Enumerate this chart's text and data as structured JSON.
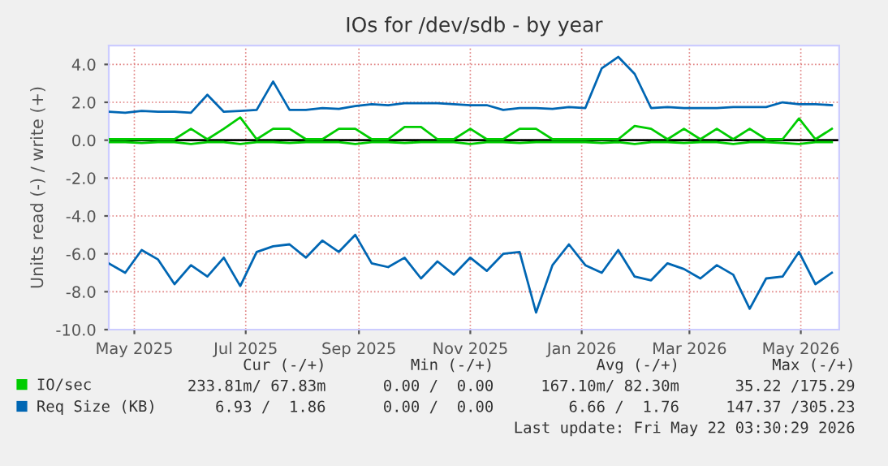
{
  "chart_data": {
    "type": "line",
    "title": "IOs for /dev/sdb - by year",
    "ylabel": "Units read (-) / write (+)",
    "x": [
      "2025-04-17",
      "2025-04-26",
      "2025-05-05",
      "2025-05-14",
      "2025-05-23",
      "2025-06-01",
      "2025-06-10",
      "2025-06-19",
      "2025-06-28",
      "2025-07-07",
      "2025-07-16",
      "2025-07-25",
      "2025-08-03",
      "2025-08-12",
      "2025-08-21",
      "2025-08-30",
      "2025-09-08",
      "2025-09-17",
      "2025-09-26",
      "2025-10-05",
      "2025-10-14",
      "2025-10-23",
      "2025-11-01",
      "2025-11-10",
      "2025-11-19",
      "2025-11-28",
      "2025-12-07",
      "2025-12-16",
      "2025-12-25",
      "2026-01-03",
      "2026-01-12",
      "2026-01-21",
      "2026-01-30",
      "2026-02-08",
      "2026-02-17",
      "2026-02-26",
      "2026-03-07",
      "2026-03-16",
      "2026-03-25",
      "2026-04-03",
      "2026-04-12",
      "2026-04-21",
      "2026-04-30",
      "2026-05-09",
      "2026-05-18"
    ],
    "series": [
      {
        "name": "IO/sec",
        "color": "#00cc00",
        "values": [
          0.05,
          0.05,
          0.05,
          0.05,
          0.05,
          0.6,
          0.05,
          0.6,
          1.2,
          0.05,
          0.6,
          0.6,
          0.05,
          0.05,
          0.6,
          0.6,
          0.05,
          0.05,
          0.7,
          0.7,
          0.05,
          0.05,
          0.6,
          0.05,
          0.05,
          0.6,
          0.6,
          0.05,
          0.05,
          0.05,
          0.05,
          0.05,
          0.75,
          0.6,
          0.05,
          0.6,
          0.05,
          0.6,
          0.05,
          0.6,
          0.05,
          0.05,
          1.15,
          0.05,
          0.6
        ]
      },
      {
        "color": "#00cc00",
        "values": [
          -0.1,
          -0.1,
          -0.15,
          -0.1,
          -0.1,
          -0.2,
          -0.1,
          -0.1,
          -0.2,
          -0.1,
          -0.1,
          -0.15,
          -0.1,
          -0.1,
          -0.1,
          -0.2,
          -0.1,
          -0.1,
          -0.15,
          -0.1,
          -0.1,
          -0.1,
          -0.2,
          -0.1,
          -0.1,
          -0.15,
          -0.1,
          -0.1,
          -0.1,
          -0.1,
          -0.15,
          -0.1,
          -0.2,
          -0.1,
          -0.1,
          -0.15,
          -0.1,
          -0.1,
          -0.2,
          -0.1,
          -0.1,
          -0.15,
          -0.2,
          -0.1,
          -0.1
        ]
      },
      {
        "name": "Req Size (KB)",
        "color": "#0066b3",
        "values": [
          1.5,
          1.45,
          1.55,
          1.5,
          1.5,
          1.45,
          2.4,
          1.5,
          1.55,
          1.6,
          3.1,
          1.6,
          1.6,
          1.7,
          1.65,
          1.8,
          1.9,
          1.85,
          1.95,
          1.95,
          1.95,
          1.9,
          1.85,
          1.85,
          1.6,
          1.7,
          1.7,
          1.65,
          1.75,
          1.7,
          3.8,
          4.4,
          3.5,
          1.7,
          1.75,
          1.7,
          1.7,
          1.7,
          1.75,
          1.75,
          1.75,
          2.0,
          1.9,
          1.9,
          1.85
        ]
      },
      {
        "color": "#0066b3",
        "values": [
          -6.5,
          -7.0,
          -5.8,
          -6.3,
          -7.6,
          -6.6,
          -7.2,
          -6.2,
          -7.7,
          -5.9,
          -5.6,
          -5.5,
          -6.2,
          -5.3,
          -5.9,
          -5.0,
          -6.5,
          -6.7,
          -6.2,
          -7.3,
          -6.4,
          -7.1,
          -6.2,
          -6.9,
          -6.0,
          -5.9,
          -9.1,
          -6.6,
          -5.5,
          -6.6,
          -7.0,
          -5.8,
          -7.2,
          -7.4,
          -6.5,
          -6.8,
          -7.3,
          -6.6,
          -7.1,
          -8.9,
          -7.3,
          -7.2,
          -5.9,
          -7.6,
          -7.0
        ]
      }
    ],
    "xlim": [
      "2025-04-17",
      "2026-05-22"
    ],
    "xticks": [
      {
        "value": "2025-05-01",
        "label": "May 2025"
      },
      {
        "value": "2025-07-01",
        "label": "Jul 2025"
      },
      {
        "value": "2025-09-01",
        "label": "Sep 2025"
      },
      {
        "value": "2025-11-01",
        "label": "Nov 2025"
      },
      {
        "value": "2026-01-01",
        "label": "Jan 2026"
      },
      {
        "value": "2026-03-01",
        "label": "Mar 2026"
      },
      {
        "value": "2026-05-01",
        "label": "May 2026"
      }
    ],
    "ylim": [
      -10,
      5
    ],
    "yticks": [
      {
        "value": 4,
        "label": "4.0"
      },
      {
        "value": 2,
        "label": "2.0"
      },
      {
        "value": 0,
        "label": "0.0"
      },
      {
        "value": -2,
        "label": "-2.0"
      },
      {
        "value": -4,
        "label": "-4.0"
      },
      {
        "value": -6,
        "label": "-6.0"
      },
      {
        "value": -8,
        "label": "-8.0"
      },
      {
        "value": -10,
        "label": "-10.0"
      }
    ],
    "ref_lines": [
      {
        "axis": "y",
        "value": 0,
        "color": "#000000"
      }
    ],
    "grid": true,
    "legend": "bottom",
    "annotations": [
      "Cur (-/+)",
      "Min (-/+)",
      "Avg (-/+)",
      "Max (-/+)",
      "233.81m/ 67.83m",
      "0.00 /  0.00",
      "167.10m/ 82.30m",
      "35.22 /175.29",
      "6.93 /  1.86",
      "0.00 /  0.00",
      "6.66 /  1.76",
      "147.37 /305.23",
      "Last update: Fri May 22 03:30:29 2026"
    ]
  }
}
